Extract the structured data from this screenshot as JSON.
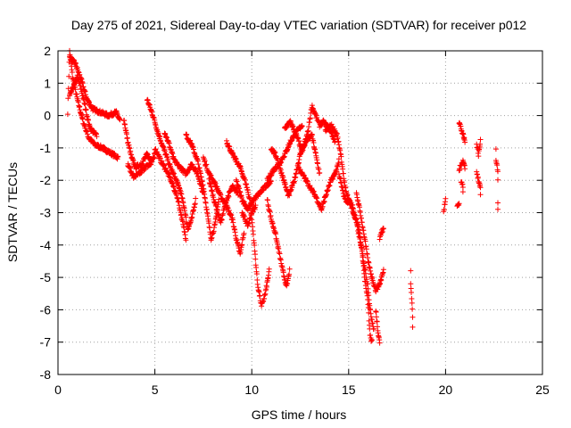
{
  "chart_data": {
    "type": "scatter",
    "title": "Day 275 of 2021, Sidereal Day-to-day VTEC variation (SDTVAR) for receiver p012",
    "xlabel": "GPS time / hours",
    "ylabel": "SDTVAR / TECUs",
    "xlim": [
      0,
      25
    ],
    "ylim": [
      -8,
      2
    ],
    "xticks": [
      0,
      5,
      10,
      15,
      20,
      25
    ],
    "yticks": [
      2,
      1,
      0,
      -1,
      -2,
      -3,
      -4,
      -5,
      -6,
      -7,
      -8
    ],
    "grid": true,
    "marker": "+",
    "color": "#ff0000",
    "series": [
      {
        "name": "SDTVAR",
        "curves": [
          [
            [
              0.5,
              0.1
            ],
            [
              0.6,
              2.0
            ],
            [
              0.75,
              1.2
            ],
            [
              1.0,
              0.5
            ],
            [
              1.3,
              -0.2
            ],
            [
              1.6,
              -0.7
            ],
            [
              1.9,
              -0.9
            ],
            [
              2.3,
              -1.0
            ],
            [
              2.7,
              -1.15
            ],
            [
              3.1,
              -1.3
            ]
          ],
          [
            [
              0.6,
              1.8
            ],
            [
              0.9,
              1.6
            ],
            [
              1.2,
              1.1
            ],
            [
              1.5,
              0.5
            ],
            [
              1.8,
              0.2
            ],
            [
              2.2,
              0.1
            ],
            [
              2.6,
              0.0
            ],
            [
              3.0,
              0.1
            ],
            [
              3.2,
              -0.15
            ]
          ],
          [
            [
              0.6,
              0.6
            ],
            [
              0.8,
              0.9
            ],
            [
              1.0,
              1.2
            ],
            [
              1.2,
              0.8
            ],
            [
              1.4,
              0.3
            ],
            [
              1.6,
              -0.3
            ],
            [
              1.8,
              -0.5
            ],
            [
              2.0,
              -0.6
            ]
          ],
          [
            [
              3.4,
              -0.1
            ],
            [
              3.6,
              -0.8
            ],
            [
              3.8,
              -1.3
            ],
            [
              4.0,
              -1.6
            ],
            [
              4.3,
              -1.5
            ],
            [
              4.6,
              -1.2
            ],
            [
              4.8,
              -1.4
            ],
            [
              5.0,
              -1.2
            ]
          ],
          [
            [
              3.6,
              -1.5
            ],
            [
              3.9,
              -1.9
            ],
            [
              4.2,
              -1.8
            ],
            [
              4.5,
              -1.6
            ],
            [
              4.8,
              -1.5
            ]
          ],
          [
            [
              4.6,
              0.5
            ],
            [
              4.9,
              0.0
            ],
            [
              5.2,
              -0.6
            ],
            [
              5.5,
              -1.1
            ],
            [
              5.8,
              -1.6
            ],
            [
              6.1,
              -2.0
            ],
            [
              6.3,
              -2.3
            ],
            [
              6.5,
              -2.8
            ],
            [
              6.7,
              -3.5
            ],
            [
              6.9,
              -3.2
            ],
            [
              7.1,
              -2.6
            ]
          ],
          [
            [
              5.0,
              -1.0
            ],
            [
              5.3,
              -1.4
            ],
            [
              5.6,
              -1.7
            ],
            [
              5.9,
              -2.1
            ],
            [
              6.2,
              -2.6
            ],
            [
              6.4,
              -3.2
            ],
            [
              6.6,
              -3.8
            ]
          ],
          [
            [
              5.5,
              -0.5
            ],
            [
              5.8,
              -1.0
            ],
            [
              6.0,
              -1.4
            ],
            [
              6.3,
              -1.6
            ],
            [
              6.6,
              -1.8
            ],
            [
              6.9,
              -1.5
            ],
            [
              7.2,
              -1.8
            ],
            [
              7.5,
              -2.4
            ]
          ],
          [
            [
              6.6,
              -0.6
            ],
            [
              6.9,
              -0.9
            ],
            [
              7.2,
              -1.4
            ],
            [
              7.5,
              -2.2
            ],
            [
              7.7,
              -3.0
            ],
            [
              7.9,
              -3.8
            ],
            [
              8.1,
              -3.4
            ],
            [
              8.3,
              -2.6
            ]
          ],
          [
            [
              7.5,
              -1.3
            ],
            [
              7.8,
              -1.8
            ],
            [
              8.1,
              -2.1
            ],
            [
              8.4,
              -2.5
            ],
            [
              8.7,
              -2.8
            ],
            [
              9.0,
              -3.2
            ],
            [
              9.2,
              -3.8
            ],
            [
              9.4,
              -4.3
            ],
            [
              9.6,
              -3.6
            ]
          ],
          [
            [
              7.8,
              -2.0
            ],
            [
              8.1,
              -2.7
            ],
            [
              8.4,
              -3.3
            ],
            [
              8.7,
              -2.6
            ],
            [
              9.0,
              -2.2
            ],
            [
              9.3,
              -2.4
            ]
          ],
          [
            [
              8.7,
              -0.8
            ],
            [
              9.0,
              -1.2
            ],
            [
              9.2,
              -1.4
            ],
            [
              9.4,
              -1.6
            ],
            [
              9.7,
              -2.1
            ],
            [
              9.9,
              -2.6
            ],
            [
              10.1,
              -3.8
            ],
            [
              10.3,
              -5.2
            ],
            [
              10.5,
              -5.9
            ],
            [
              10.7,
              -5.5
            ],
            [
              10.9,
              -4.8
            ]
          ],
          [
            [
              9.2,
              -2.0
            ],
            [
              9.5,
              -2.6
            ],
            [
              9.8,
              -2.9
            ],
            [
              10.1,
              -2.6
            ],
            [
              10.4,
              -2.4
            ],
            [
              10.7,
              -2.2
            ],
            [
              11.0,
              -2.0
            ]
          ],
          [
            [
              9.5,
              -3.0
            ],
            [
              9.8,
              -3.4
            ],
            [
              10.0,
              -3.0
            ],
            [
              10.2,
              -2.8
            ]
          ],
          [
            [
              10.8,
              -2.6
            ],
            [
              11.0,
              -3.2
            ],
            [
              11.2,
              -3.6
            ],
            [
              11.4,
              -4.2
            ],
            [
              11.6,
              -4.8
            ],
            [
              11.8,
              -5.3
            ],
            [
              11.95,
              -4.8
            ]
          ],
          [
            [
              10.8,
              -2.0
            ],
            [
              11.1,
              -1.7
            ],
            [
              11.4,
              -1.5
            ],
            [
              11.7,
              -1.2
            ],
            [
              12.0,
              -0.8
            ],
            [
              12.3,
              -0.5
            ],
            [
              12.6,
              -0.3
            ]
          ],
          [
            [
              11.0,
              -1.0
            ],
            [
              11.3,
              -1.3
            ],
            [
              11.6,
              -1.9
            ],
            [
              11.9,
              -2.5
            ],
            [
              12.2,
              -2.0
            ],
            [
              12.5,
              -1.2
            ],
            [
              12.8,
              -0.8
            ],
            [
              13.1,
              -0.6
            ],
            [
              13.3,
              -1.2
            ],
            [
              13.5,
              -1.8
            ]
          ],
          [
            [
              11.7,
              -0.4
            ],
            [
              12.0,
              -0.2
            ],
            [
              12.3,
              -0.6
            ],
            [
              12.6,
              -1.1
            ],
            [
              12.9,
              -0.5
            ],
            [
              13.1,
              0.3
            ],
            [
              13.3,
              0.0
            ],
            [
              13.5,
              -0.3
            ],
            [
              13.7,
              -0.2
            ],
            [
              14.0,
              -0.4
            ],
            [
              14.3,
              -0.8
            ]
          ],
          [
            [
              12.4,
              -1.6
            ],
            [
              12.7,
              -1.9
            ],
            [
              13.0,
              -2.2
            ],
            [
              13.3,
              -2.5
            ],
            [
              13.6,
              -2.9
            ],
            [
              13.8,
              -2.5
            ],
            [
              14.1,
              -2.0
            ],
            [
              14.3,
              -1.8
            ],
            [
              14.5,
              -1.4
            ]
          ],
          [
            [
              13.8,
              -0.5
            ],
            [
              14.1,
              -0.3
            ],
            [
              14.4,
              -0.6
            ],
            [
              14.6,
              -1.2
            ],
            [
              14.8,
              -2.2
            ],
            [
              15.0,
              -2.6
            ],
            [
              15.2,
              -2.8
            ],
            [
              15.4,
              -3.3
            ],
            [
              15.6,
              -3.9
            ],
            [
              15.8,
              -4.6
            ],
            [
              16.0,
              -5.3
            ],
            [
              16.1,
              -6.0
            ],
            [
              16.3,
              -6.6
            ]
          ],
          [
            [
              14.5,
              -1.8
            ],
            [
              14.8,
              -2.6
            ],
            [
              15.1,
              -2.7
            ],
            [
              15.3,
              -3.1
            ],
            [
              15.5,
              -3.4
            ],
            [
              15.7,
              -4.2
            ],
            [
              15.8,
              -4.9
            ],
            [
              16.0,
              -5.8
            ],
            [
              16.1,
              -6.8
            ],
            [
              16.2,
              -7.0
            ]
          ],
          [
            [
              15.4,
              -2.4
            ],
            [
              15.6,
              -3.0
            ],
            [
              15.8,
              -3.7
            ],
            [
              16.0,
              -4.5
            ],
            [
              16.2,
              -5.0
            ],
            [
              16.4,
              -5.4
            ],
            [
              16.6,
              -5.2
            ],
            [
              16.8,
              -4.8
            ]
          ],
          [
            [
              16.4,
              -6.0
            ],
            [
              16.5,
              -6.6
            ],
            [
              16.6,
              -7.0
            ]
          ],
          [
            [
              16.6,
              -3.8
            ],
            [
              16.7,
              -3.6
            ],
            [
              16.8,
              -3.5
            ]
          ],
          [
            [
              18.2,
              -4.8
            ],
            [
              18.2,
              -5.2
            ],
            [
              18.25,
              -5.6
            ],
            [
              18.3,
              -6.2
            ],
            [
              18.3,
              -6.5
            ]
          ],
          [
            [
              19.9,
              -3.0
            ],
            [
              20.0,
              -2.6
            ]
          ],
          [
            [
              20.6,
              -2.75
            ],
            [
              20.7,
              -2.7
            ]
          ],
          [
            [
              20.7,
              -0.2
            ],
            [
              20.8,
              -0.4
            ],
            [
              20.9,
              -0.6
            ],
            [
              21.0,
              -0.8
            ]
          ],
          [
            [
              20.7,
              -1.7
            ],
            [
              20.8,
              -1.5
            ],
            [
              20.9,
              -1.4
            ],
            [
              21.0,
              -1.6
            ]
          ],
          [
            [
              20.8,
              -2.0
            ],
            [
              20.9,
              -2.2
            ],
            [
              20.9,
              -2.3
            ]
          ],
          [
            [
              21.6,
              -0.9
            ],
            [
              21.7,
              -1.2
            ],
            [
              21.8,
              -0.8
            ]
          ],
          [
            [
              21.6,
              -1.7
            ],
            [
              21.7,
              -2.0
            ],
            [
              21.8,
              -2.2
            ],
            [
              21.8,
              -2.5
            ]
          ],
          [
            [
              22.6,
              -1.0
            ],
            [
              22.6,
              -1.4
            ],
            [
              22.7,
              -1.7
            ],
            [
              22.7,
              -2.0
            ],
            [
              22.7,
              -2.7
            ],
            [
              22.7,
              -2.9
            ]
          ]
        ]
      }
    ]
  }
}
